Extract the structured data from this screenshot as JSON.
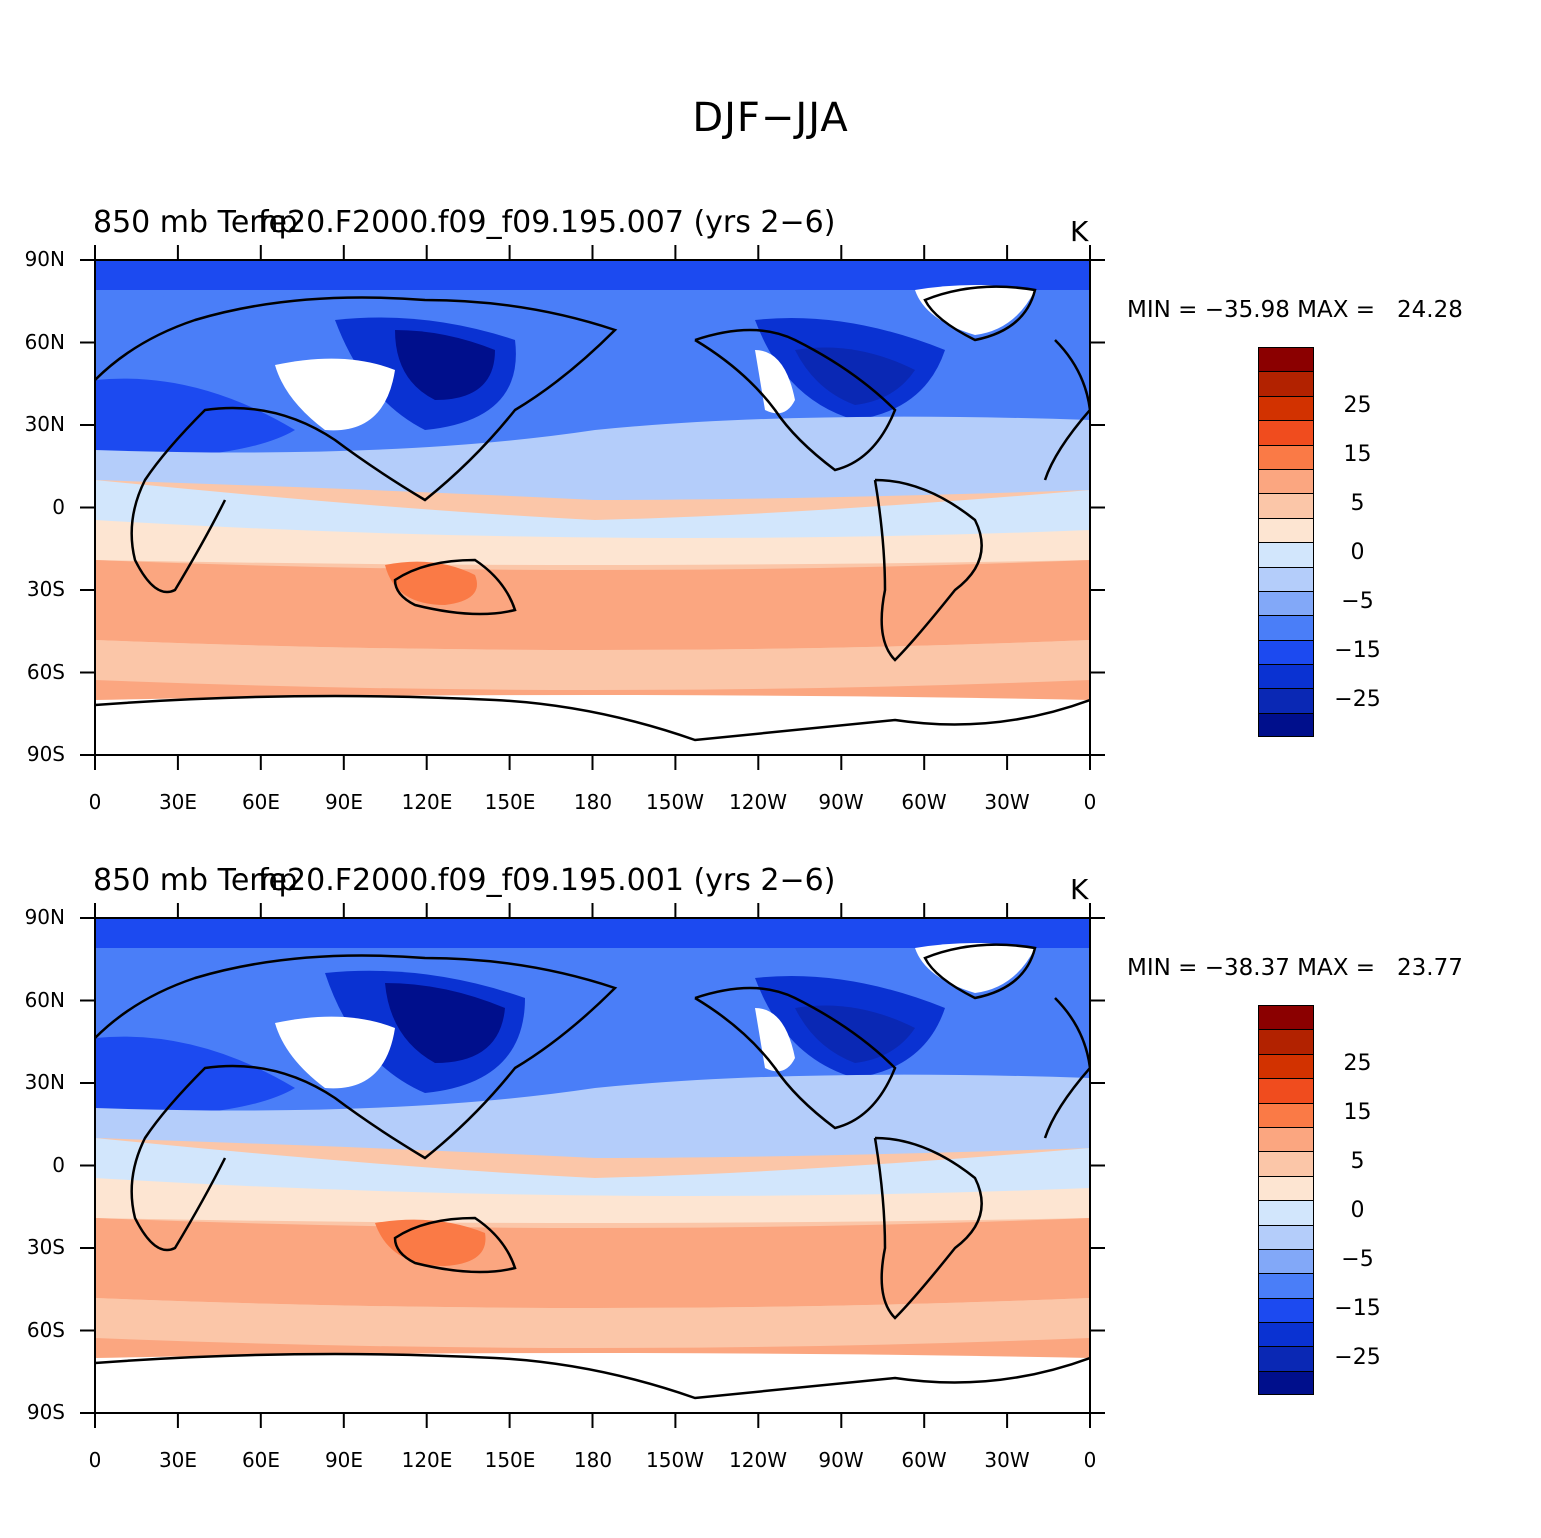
{
  "title": "DJF−JJA",
  "panels": [
    {
      "case_title": "fe20.F2000.f09_f09.195.007 (yrs 2−6)",
      "var_title": "850 mb Temp",
      "units": "K",
      "minmax": "MIN = −35.98 MAX =   24.28"
    },
    {
      "case_title": "fe20.F2000.f09_f09.195.001 (yrs 2−6)",
      "var_title": "850 mb Temp",
      "units": "K",
      "minmax": "MIN = −38.37 MAX =   23.77"
    }
  ],
  "lat_labels": [
    "90N",
    "60N",
    "30N",
    "0",
    "30S",
    "60S",
    "90S"
  ],
  "lon_labels": [
    "0",
    "30E",
    "60E",
    "90E",
    "120E",
    "150E",
    "180",
    "150W",
    "120W",
    "90W",
    "60W",
    "30W",
    "0"
  ],
  "colorbar": {
    "colors": [
      "#8b0000",
      "#b22200",
      "#d23200",
      "#f04c1e",
      "#fa7a46",
      "#fba680",
      "#fbc6a8",
      "#fde5d2",
      "#d2e6fc",
      "#b4cdfa",
      "#82a8f8",
      "#4a7ef8",
      "#1c4af0",
      "#0a32d2",
      "#0a28b4",
      "#000f8c"
    ],
    "labels": [
      "25",
      "15",
      "5",
      "0",
      "−5",
      "−15",
      "−25"
    ]
  },
  "map_colors": {
    "land_outline": "#000000",
    "no_data": "#ffffff"
  }
}
